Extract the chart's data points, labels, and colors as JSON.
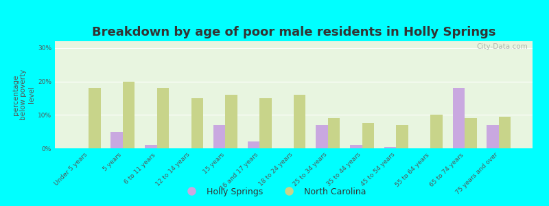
{
  "title": "Breakdown by age of poor male residents in Holly Springs",
  "ylabel": "percentage\nbelow poverty\nlevel",
  "categories": [
    "Under 5 years",
    "5 years",
    "6 to 11 years",
    "12 to 14 years",
    "15 years",
    "16 and 17 years",
    "18 to 24 years",
    "25 to 34 years",
    "35 to 44 years",
    "45 to 54 years",
    "55 to 64 years",
    "65 to 74 years",
    "75 years and over"
  ],
  "holly_springs": [
    0,
    5,
    1,
    0,
    7,
    2,
    0,
    7,
    1,
    0.5,
    0,
    18,
    7
  ],
  "north_carolina": [
    18,
    20,
    18,
    15,
    16,
    15,
    16,
    9,
    7.5,
    7,
    10,
    9,
    9.5
  ],
  "holly_springs_color": "#c9a8e0",
  "north_carolina_color": "#c8d48a",
  "background_color": "#e8f5e0",
  "outer_background": "#00ffff",
  "ylim": [
    0,
    32
  ],
  "yticks": [
    0,
    10,
    20,
    30
  ],
  "ytick_labels": [
    "0%",
    "10%",
    "20%",
    "30%"
  ],
  "title_fontsize": 13,
  "ylabel_fontsize": 7.5,
  "tick_fontsize": 6.5,
  "legend_fontsize": 9,
  "bar_width": 0.35,
  "watermark": "City-Data.com"
}
